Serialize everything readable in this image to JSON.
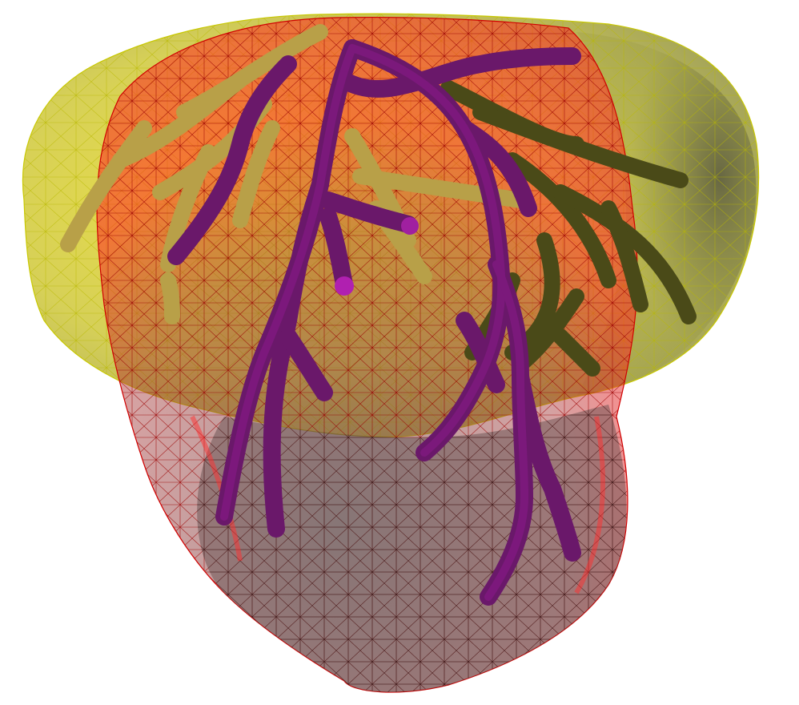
{
  "scene": {
    "background": "#ffffff",
    "colors": {
      "yellow_shell": "#e6e600",
      "yellow_wire": "#b8b800",
      "red_shell": "#e01010",
      "red_wire": "#b00000",
      "dark_gray_interior": "#3c3c30",
      "vessel_purple": "#7a1a7a",
      "vessel_purple_dark": "#3a0a40",
      "vessel_olive": "#c8b050",
      "vessel_olive_dark": "#3a3a10"
    },
    "objects": [
      "yellow-mesh-surface",
      "red-mesh-surface",
      "purple-vessel-tree",
      "olive-vessel-tree"
    ]
  }
}
